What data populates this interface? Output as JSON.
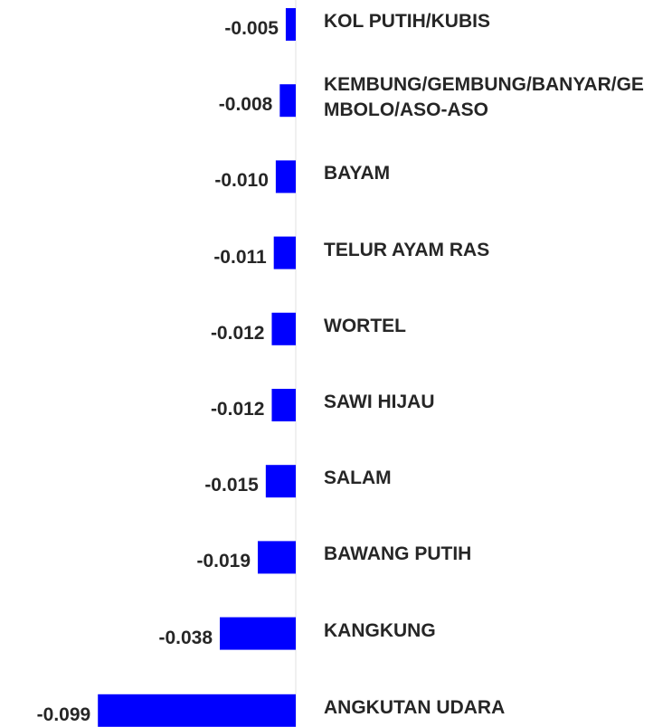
{
  "chart_data": {
    "type": "hbar",
    "categories": [
      "KOL PUTIH/KUBIS",
      "KEMBUNG/GEMBUNG/BANYAR/GEMBOLO/ASO-ASO",
      "BAYAM",
      "TELUR AYAM RAS",
      "WORTEL",
      "SAWI HIJAU",
      "SALAM",
      "BAWANG PUTIH",
      "KANGKUNG",
      "ANGKUTAN UDARA"
    ],
    "values": [
      -0.005,
      -0.008,
      -0.01,
      -0.011,
      -0.012,
      -0.012,
      -0.015,
      -0.019,
      -0.038,
      -0.099
    ],
    "value_labels": [
      "-0.005",
      "-0.008",
      "-0.010",
      "-0.011",
      "-0.012",
      "-0.012",
      "-0.015",
      "-0.019",
      "-0.038",
      "-0.099"
    ],
    "color": "#0000ff",
    "xlim": [
      -0.1,
      0
    ]
  }
}
